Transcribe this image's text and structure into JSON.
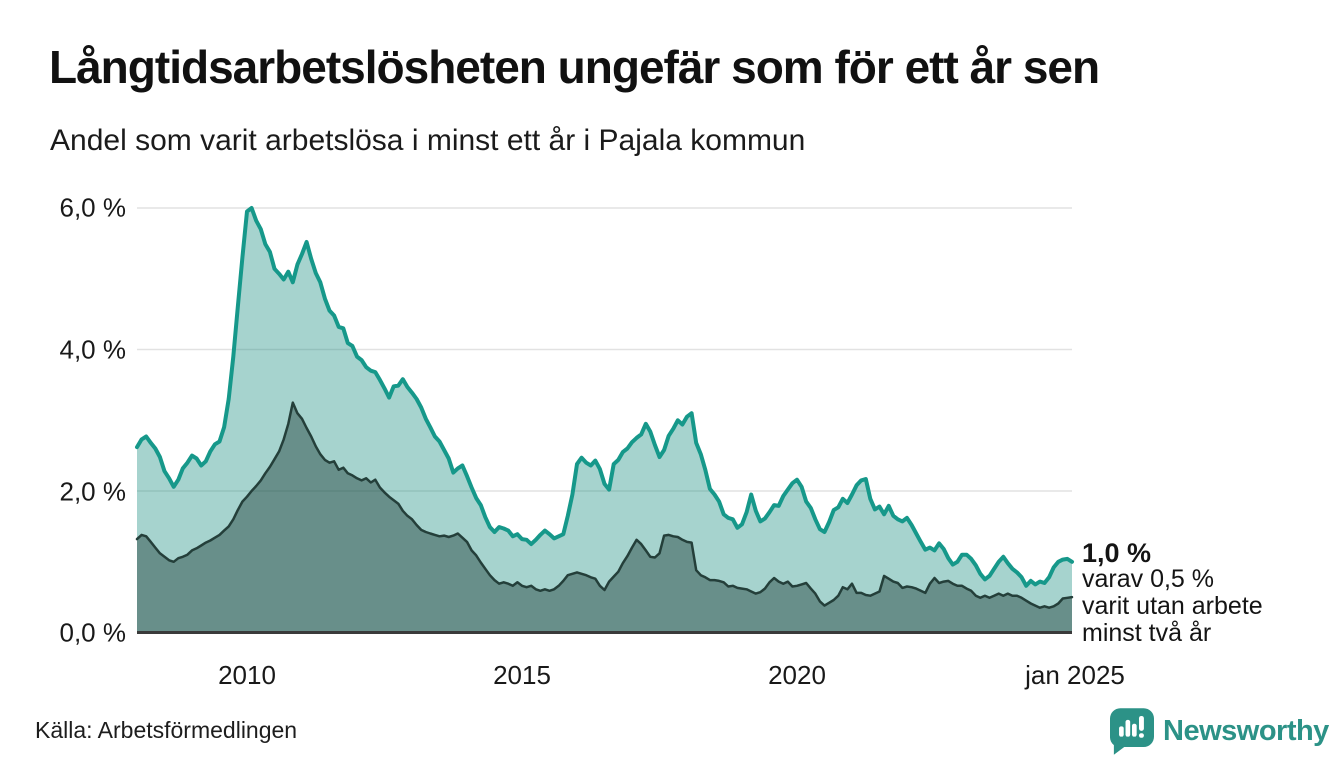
{
  "header": {
    "title": "Långtidsarbetslösheten ungefär som för ett år sen",
    "subtitle": "Andel som varit arbetslösa i minst ett år i Pajala kommun"
  },
  "annotation": {
    "value_label": "1,0 %",
    "lines": [
      "varav 0,5 %",
      "varit utan arbete",
      "minst två år"
    ]
  },
  "footer": {
    "source": "Källa: Arbetsförmedlingen"
  },
  "brand": {
    "name": "Newsworthy",
    "color": "#2c9287",
    "icon": "bar-chart-bubble-icon"
  },
  "chart_data": {
    "type": "area",
    "title": "Långtidsarbetslösheten ungefär som för ett år sen",
    "subtitle": "Andel som varit arbetslösa i minst ett år i Pajala kommun",
    "unit": "%",
    "x_monthly_from": "2008-01",
    "x_monthly_to": "2025-01",
    "x_tick_labels": [
      "2010",
      "2015",
      "2020",
      "jan 2025"
    ],
    "x_tick_years": [
      2010,
      2015,
      2020,
      2025
    ],
    "x_range_years": [
      2008,
      2025
    ],
    "y_tick_labels": [
      "6,0 %",
      "4,0 %",
      "2,0 %",
      "0,0 %"
    ],
    "y_gridlines": [
      2,
      4,
      6
    ],
    "ylim": [
      0,
      6.3
    ],
    "grid_on": true,
    "legend": "none (annotated at line end)",
    "end_labels": {
      "total": "1,0 %",
      "two_years": "0,5 %"
    },
    "colors": {
      "grid": "#e2e2e2",
      "baseline": "#3a3a3a",
      "line_total": "#16988a",
      "fill_total": "rgba(20,140,125,0.38)",
      "line_two_years": "#243f3a",
      "fill_two_years": "rgba(28,60,55,0.45)"
    },
    "series": [
      {
        "id": "arbetslosa-minst-ett-ar",
        "role": "total",
        "values": [
          2.62,
          2.73,
          2.77,
          2.68,
          2.6,
          2.48,
          2.28,
          2.18,
          2.06,
          2.16,
          2.32,
          2.4,
          2.5,
          2.46,
          2.36,
          2.42,
          2.56,
          2.66,
          2.7,
          2.9,
          3.3,
          3.9,
          4.6,
          5.3,
          5.95,
          6.0,
          5.82,
          5.7,
          5.49,
          5.38,
          5.14,
          5.07,
          4.99,
          5.1,
          4.95,
          5.2,
          5.35,
          5.52,
          5.28,
          5.08,
          4.95,
          4.72,
          4.55,
          4.48,
          4.32,
          4.3,
          4.09,
          4.05,
          3.9,
          3.85,
          3.75,
          3.7,
          3.68,
          3.57,
          3.45,
          3.32,
          3.48,
          3.49,
          3.58,
          3.47,
          3.39,
          3.3,
          3.18,
          3.02,
          2.9,
          2.77,
          2.7,
          2.58,
          2.46,
          2.26,
          2.32,
          2.36,
          2.21,
          2.05,
          1.9,
          1.8,
          1.63,
          1.49,
          1.42,
          1.49,
          1.47,
          1.44,
          1.36,
          1.39,
          1.32,
          1.31,
          1.25,
          1.31,
          1.38,
          1.44,
          1.39,
          1.33,
          1.36,
          1.39,
          1.65,
          1.95,
          2.38,
          2.47,
          2.4,
          2.36,
          2.43,
          2.31,
          2.1,
          2.02,
          2.38,
          2.44,
          2.55,
          2.6,
          2.69,
          2.75,
          2.8,
          2.95,
          2.84,
          2.65,
          2.48,
          2.58,
          2.78,
          2.88,
          3.0,
          2.94,
          3.05,
          3.1,
          2.68,
          2.52,
          2.3,
          2.03,
          1.95,
          1.85,
          1.67,
          1.62,
          1.6,
          1.48,
          1.53,
          1.7,
          1.95,
          1.72,
          1.57,
          1.61,
          1.7,
          1.8,
          1.79,
          1.93,
          2.02,
          2.11,
          2.16,
          2.06,
          1.85,
          1.76,
          1.6,
          1.46,
          1.42,
          1.56,
          1.73,
          1.77,
          1.89,
          1.83,
          1.95,
          2.08,
          2.15,
          2.17,
          1.89,
          1.74,
          1.78,
          1.67,
          1.79,
          1.65,
          1.6,
          1.57,
          1.62,
          1.52,
          1.4,
          1.28,
          1.17,
          1.2,
          1.16,
          1.26,
          1.18,
          1.05,
          0.96,
          1.0,
          1.1,
          1.1,
          1.04,
          0.95,
          0.83,
          0.75,
          0.8,
          0.9,
          1.0,
          1.07,
          0.98,
          0.9,
          0.85,
          0.78,
          0.66,
          0.73,
          0.68,
          0.72,
          0.7,
          0.78,
          0.92,
          1.0,
          1.03,
          1.04,
          1.0
        ]
      },
      {
        "id": "varav-arbetslosa-minst-tva-ar",
        "role": "two_years",
        "values": [
          1.32,
          1.38,
          1.36,
          1.28,
          1.2,
          1.12,
          1.07,
          1.02,
          1.0,
          1.05,
          1.07,
          1.1,
          1.16,
          1.19,
          1.23,
          1.27,
          1.3,
          1.34,
          1.38,
          1.44,
          1.5,
          1.6,
          1.73,
          1.85,
          1.92,
          2.0,
          2.07,
          2.15,
          2.25,
          2.34,
          2.45,
          2.56,
          2.73,
          2.95,
          3.25,
          3.1,
          3.02,
          2.89,
          2.77,
          2.63,
          2.52,
          2.44,
          2.4,
          2.42,
          2.3,
          2.33,
          2.25,
          2.22,
          2.18,
          2.15,
          2.18,
          2.12,
          2.16,
          2.05,
          1.98,
          1.92,
          1.87,
          1.82,
          1.72,
          1.65,
          1.6,
          1.52,
          1.45,
          1.42,
          1.4,
          1.38,
          1.36,
          1.37,
          1.35,
          1.37,
          1.4,
          1.34,
          1.28,
          1.16,
          1.09,
          0.99,
          0.9,
          0.81,
          0.74,
          0.69,
          0.71,
          0.69,
          0.66,
          0.71,
          0.66,
          0.64,
          0.66,
          0.61,
          0.59,
          0.61,
          0.59,
          0.61,
          0.66,
          0.73,
          0.81,
          0.83,
          0.85,
          0.83,
          0.81,
          0.78,
          0.76,
          0.66,
          0.6,
          0.72,
          0.79,
          0.86,
          0.98,
          1.08,
          1.2,
          1.31,
          1.25,
          1.16,
          1.07,
          1.06,
          1.12,
          1.37,
          1.38,
          1.36,
          1.35,
          1.31,
          1.28,
          1.27,
          0.88,
          0.81,
          0.78,
          0.74,
          0.74,
          0.73,
          0.71,
          0.65,
          0.66,
          0.63,
          0.62,
          0.61,
          0.58,
          0.55,
          0.57,
          0.62,
          0.71,
          0.77,
          0.72,
          0.69,
          0.72,
          0.65,
          0.66,
          0.68,
          0.7,
          0.62,
          0.55,
          0.44,
          0.38,
          0.42,
          0.46,
          0.52,
          0.64,
          0.61,
          0.69,
          0.56,
          0.56,
          0.53,
          0.52,
          0.55,
          0.58,
          0.8,
          0.76,
          0.72,
          0.7,
          0.63,
          0.65,
          0.64,
          0.62,
          0.59,
          0.56,
          0.69,
          0.77,
          0.7,
          0.72,
          0.73,
          0.69,
          0.66,
          0.66,
          0.62,
          0.59,
          0.52,
          0.49,
          0.52,
          0.49,
          0.52,
          0.55,
          0.52,
          0.55,
          0.52,
          0.52,
          0.49,
          0.45,
          0.41,
          0.38,
          0.35,
          0.37,
          0.35,
          0.37,
          0.41,
          0.48,
          0.49,
          0.5
        ]
      }
    ]
  }
}
